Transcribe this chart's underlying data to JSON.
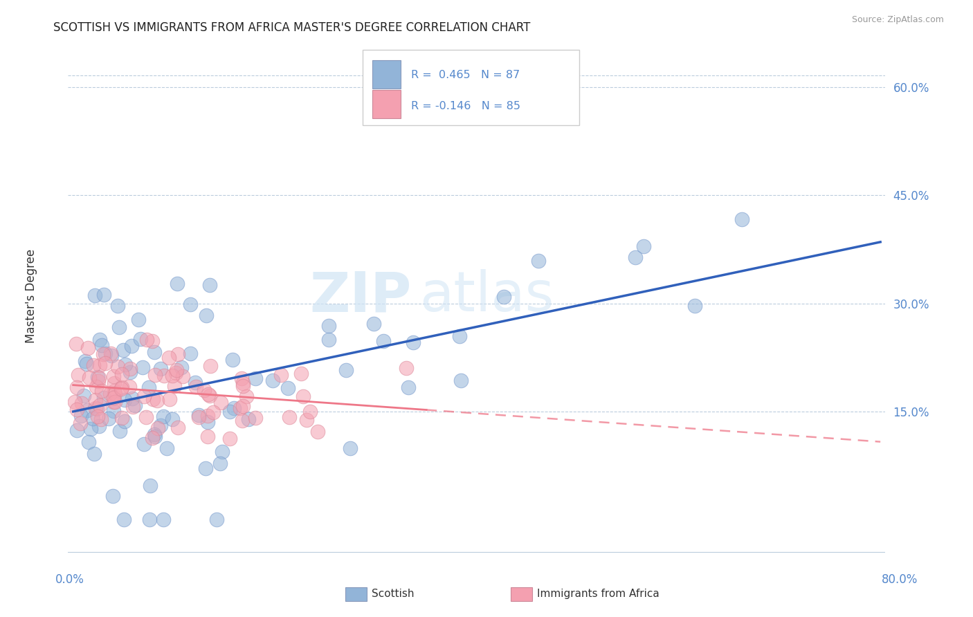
{
  "title": "SCOTTISH VS IMMIGRANTS FROM AFRICA MASTER'S DEGREE CORRELATION CHART",
  "source": "Source: ZipAtlas.com",
  "ylabel": "Master's Degree",
  "yticks": [
    0.0,
    0.15,
    0.3,
    0.45,
    0.6
  ],
  "ytick_labels": [
    "",
    "15.0%",
    "30.0%",
    "45.0%",
    "60.0%"
  ],
  "xmin": 0.0,
  "xmax": 0.8,
  "ymin": -0.05,
  "ymax": 0.67,
  "r_scottish": 0.465,
  "n_scottish": 87,
  "r_africa": -0.146,
  "n_africa": 85,
  "blue_color": "#92B4D8",
  "pink_color": "#F4A0B0",
  "blue_line_color": "#3060BB",
  "pink_line_color": "#EE7788",
  "legend_label_scottish": "Scottish",
  "legend_label_africa": "Immigrants from Africa",
  "watermark_zip": "ZIP",
  "watermark_atlas": "atlas",
  "title_fontsize": 12,
  "axis_color": "#5588CC",
  "tick_fontsize": 12
}
